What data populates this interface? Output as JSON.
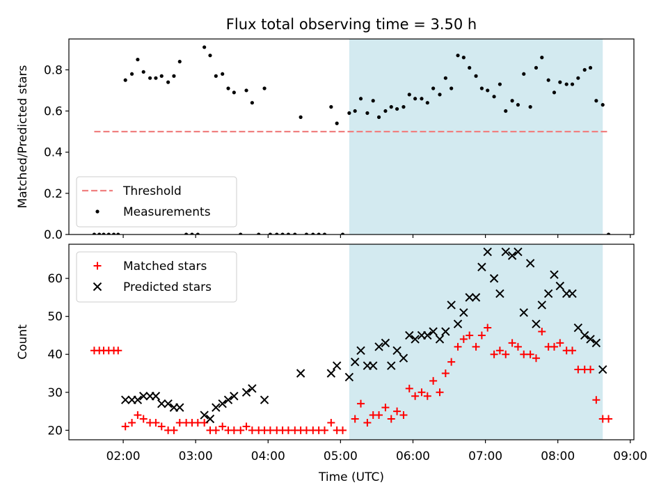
{
  "title": "Flux total observing time = 3.50 h",
  "chart_data": [
    {
      "type": "scatter",
      "ylabel": "Matched/Predicted stars",
      "xlim": [
        1.25,
        9.05
      ],
      "ylim": [
        0,
        0.95
      ],
      "yticks": [
        0.0,
        0.2,
        0.4,
        0.6,
        0.8
      ],
      "ytick_labels": [
        "0.0",
        "0.2",
        "0.4",
        "0.6",
        "0.8"
      ],
      "shaded_span": [
        5.12,
        8.62
      ],
      "shade_color": "#d3eaf0",
      "legend_position": "lower left",
      "threshold": {
        "name": "Threshold",
        "value": 0.5,
        "x": [
          1.6,
          8.7
        ],
        "color": "#f08080"
      },
      "series": [
        {
          "name": "Measurements",
          "color": "#000000",
          "marker": "dot",
          "points": [
            [
              1.6,
              0
            ],
            [
              1.67,
              0
            ],
            [
              1.73,
              0
            ],
            [
              1.8,
              0
            ],
            [
              1.87,
              0
            ],
            [
              1.93,
              0
            ],
            [
              2.03,
              0.75
            ],
            [
              2.12,
              0.78
            ],
            [
              2.2,
              0.85
            ],
            [
              2.28,
              0.79
            ],
            [
              2.37,
              0.76
            ],
            [
              2.45,
              0.76
            ],
            [
              2.53,
              0.77
            ],
            [
              2.62,
              0.74
            ],
            [
              2.7,
              0.77
            ],
            [
              2.78,
              0.84
            ],
            [
              2.87,
              0
            ],
            [
              2.95,
              0
            ],
            [
              3.03,
              0
            ],
            [
              3.12,
              0.91
            ],
            [
              3.2,
              0.87
            ],
            [
              3.28,
              0.77
            ],
            [
              3.37,
              0.78
            ],
            [
              3.45,
              0.71
            ],
            [
              3.53,
              0.69
            ],
            [
              3.62,
              0
            ],
            [
              3.7,
              0.7
            ],
            [
              3.78,
              0.64
            ],
            [
              3.87,
              0
            ],
            [
              3.95,
              0.71
            ],
            [
              4.03,
              0
            ],
            [
              4.12,
              0
            ],
            [
              4.2,
              0
            ],
            [
              4.28,
              0
            ],
            [
              4.37,
              0
            ],
            [
              4.45,
              0.57
            ],
            [
              4.53,
              0
            ],
            [
              4.62,
              0
            ],
            [
              4.7,
              0
            ],
            [
              4.78,
              0
            ],
            [
              4.87,
              0.62
            ],
            [
              4.95,
              0.54
            ],
            [
              5.03,
              0
            ],
            [
              5.12,
              0.59
            ],
            [
              5.2,
              0.6
            ],
            [
              5.28,
              0.66
            ],
            [
              5.37,
              0.59
            ],
            [
              5.45,
              0.65
            ],
            [
              5.53,
              0.57
            ],
            [
              5.62,
              0.6
            ],
            [
              5.7,
              0.62
            ],
            [
              5.78,
              0.61
            ],
            [
              5.87,
              0.62
            ],
            [
              5.95,
              0.68
            ],
            [
              6.03,
              0.66
            ],
            [
              6.12,
              0.66
            ],
            [
              6.2,
              0.64
            ],
            [
              6.28,
              0.71
            ],
            [
              6.37,
              0.68
            ],
            [
              6.45,
              0.76
            ],
            [
              6.53,
              0.71
            ],
            [
              6.62,
              0.87
            ],
            [
              6.7,
              0.86
            ],
            [
              6.78,
              0.81
            ],
            [
              6.87,
              0.77
            ],
            [
              6.95,
              0.71
            ],
            [
              7.03,
              0.7
            ],
            [
              7.12,
              0.67
            ],
            [
              7.2,
              0.73
            ],
            [
              7.28,
              0.6
            ],
            [
              7.37,
              0.65
            ],
            [
              7.45,
              0.63
            ],
            [
              7.53,
              0.78
            ],
            [
              7.62,
              0.62
            ],
            [
              7.7,
              0.81
            ],
            [
              7.78,
              0.86
            ],
            [
              7.87,
              0.75
            ],
            [
              7.95,
              0.69
            ],
            [
              8.03,
              0.74
            ],
            [
              8.12,
              0.73
            ],
            [
              8.2,
              0.73
            ],
            [
              8.28,
              0.76
            ],
            [
              8.37,
              0.8
            ],
            [
              8.45,
              0.81
            ],
            [
              8.53,
              0.65
            ],
            [
              8.62,
              0.63
            ],
            [
              8.7,
              0
            ]
          ]
        }
      ]
    },
    {
      "type": "scatter",
      "xlabel": "Time (UTC)",
      "ylabel": "Count",
      "xlim": [
        1.25,
        9.05
      ],
      "ylim": [
        17.5,
        69
      ],
      "xticks": [
        2,
        3,
        4,
        5,
        6,
        7,
        8,
        9
      ],
      "xtick_labels": [
        "02:00",
        "03:00",
        "04:00",
        "05:00",
        "06:00",
        "07:00",
        "08:00",
        "09:00"
      ],
      "yticks": [
        20,
        30,
        40,
        50,
        60
      ],
      "ytick_labels": [
        "20",
        "30",
        "40",
        "50",
        "60"
      ],
      "shaded_span": [
        5.12,
        8.62
      ],
      "shade_color": "#d3eaf0",
      "legend_position": "upper left",
      "series": [
        {
          "name": "Matched stars",
          "color": "#ff0000",
          "marker": "plus",
          "points": [
            [
              1.6,
              41
            ],
            [
              1.67,
              41
            ],
            [
              1.73,
              41
            ],
            [
              1.8,
              41
            ],
            [
              1.87,
              41
            ],
            [
              1.93,
              41
            ],
            [
              2.03,
              21
            ],
            [
              2.12,
              22
            ],
            [
              2.2,
              24
            ],
            [
              2.28,
              23
            ],
            [
              2.37,
              22
            ],
            [
              2.45,
              22
            ],
            [
              2.53,
              21
            ],
            [
              2.62,
              20
            ],
            [
              2.7,
              20
            ],
            [
              2.78,
              22
            ],
            [
              2.87,
              22
            ],
            [
              2.95,
              22
            ],
            [
              3.03,
              22
            ],
            [
              3.12,
              22
            ],
            [
              3.2,
              20
            ],
            [
              3.28,
              20
            ],
            [
              3.37,
              21
            ],
            [
              3.45,
              20
            ],
            [
              3.53,
              20
            ],
            [
              3.62,
              20
            ],
            [
              3.7,
              21
            ],
            [
              3.78,
              20
            ],
            [
              3.87,
              20
            ],
            [
              3.95,
              20
            ],
            [
              4.03,
              20
            ],
            [
              4.12,
              20
            ],
            [
              4.2,
              20
            ],
            [
              4.28,
              20
            ],
            [
              4.37,
              20
            ],
            [
              4.45,
              20
            ],
            [
              4.53,
              20
            ],
            [
              4.62,
              20
            ],
            [
              4.7,
              20
            ],
            [
              4.78,
              20
            ],
            [
              4.87,
              22
            ],
            [
              4.95,
              20
            ],
            [
              5.03,
              20
            ],
            [
              5.2,
              23
            ],
            [
              5.28,
              27
            ],
            [
              5.37,
              22
            ],
            [
              5.45,
              24
            ],
            [
              5.53,
              24
            ],
            [
              5.62,
              26
            ],
            [
              5.7,
              23
            ],
            [
              5.78,
              25
            ],
            [
              5.87,
              24
            ],
            [
              5.95,
              31
            ],
            [
              6.03,
              29
            ],
            [
              6.12,
              30
            ],
            [
              6.2,
              29
            ],
            [
              6.28,
              33
            ],
            [
              6.37,
              30
            ],
            [
              6.45,
              35
            ],
            [
              6.53,
              38
            ],
            [
              6.62,
              42
            ],
            [
              6.7,
              44
            ],
            [
              6.78,
              45
            ],
            [
              6.87,
              42
            ],
            [
              6.95,
              45
            ],
            [
              7.03,
              47
            ],
            [
              7.12,
              40
            ],
            [
              7.2,
              41
            ],
            [
              7.28,
              40
            ],
            [
              7.37,
              43
            ],
            [
              7.45,
              42
            ],
            [
              7.53,
              40
            ],
            [
              7.62,
              40
            ],
            [
              7.7,
              39
            ],
            [
              7.78,
              46
            ],
            [
              7.87,
              42
            ],
            [
              7.95,
              42
            ],
            [
              8.03,
              43
            ],
            [
              8.12,
              41
            ],
            [
              8.2,
              41
            ],
            [
              8.28,
              36
            ],
            [
              8.37,
              36
            ],
            [
              8.45,
              36
            ],
            [
              8.53,
              28
            ],
            [
              8.62,
              23
            ],
            [
              8.7,
              23
            ]
          ]
        },
        {
          "name": "Predicted stars",
          "color": "#000000",
          "marker": "x",
          "points": [
            [
              2.03,
              28
            ],
            [
              2.12,
              28
            ],
            [
              2.2,
              28
            ],
            [
              2.28,
              29
            ],
            [
              2.37,
              29
            ],
            [
              2.45,
              29
            ],
            [
              2.53,
              27
            ],
            [
              2.62,
              27
            ],
            [
              2.7,
              26
            ],
            [
              2.78,
              26
            ],
            [
              3.12,
              24
            ],
            [
              3.2,
              23
            ],
            [
              3.28,
              26
            ],
            [
              3.37,
              27
            ],
            [
              3.45,
              28
            ],
            [
              3.53,
              29
            ],
            [
              3.7,
              30
            ],
            [
              3.78,
              31
            ],
            [
              3.95,
              28
            ],
            [
              4.45,
              35
            ],
            [
              4.87,
              35
            ],
            [
              4.95,
              37
            ],
            [
              5.12,
              34
            ],
            [
              5.2,
              38
            ],
            [
              5.28,
              41
            ],
            [
              5.37,
              37
            ],
            [
              5.45,
              37
            ],
            [
              5.53,
              42
            ],
            [
              5.62,
              43
            ],
            [
              5.7,
              37
            ],
            [
              5.78,
              41
            ],
            [
              5.87,
              39
            ],
            [
              5.95,
              45
            ],
            [
              6.03,
              44
            ],
            [
              6.12,
              45
            ],
            [
              6.2,
              45
            ],
            [
              6.28,
              46
            ],
            [
              6.37,
              44
            ],
            [
              6.45,
              46
            ],
            [
              6.53,
              53
            ],
            [
              6.62,
              48
            ],
            [
              6.7,
              51
            ],
            [
              6.78,
              55
            ],
            [
              6.87,
              55
            ],
            [
              6.95,
              63
            ],
            [
              7.03,
              67
            ],
            [
              7.12,
              60
            ],
            [
              7.2,
              56
            ],
            [
              7.28,
              67
            ],
            [
              7.37,
              66
            ],
            [
              7.45,
              67
            ],
            [
              7.53,
              51
            ],
            [
              7.62,
              64
            ],
            [
              7.7,
              48
            ],
            [
              7.78,
              53
            ],
            [
              7.87,
              56
            ],
            [
              7.95,
              61
            ],
            [
              8.03,
              58
            ],
            [
              8.12,
              56
            ],
            [
              8.2,
              56
            ],
            [
              8.28,
              47
            ],
            [
              8.37,
              45
            ],
            [
              8.45,
              44
            ],
            [
              8.53,
              43
            ],
            [
              8.62,
              36
            ]
          ]
        }
      ]
    }
  ]
}
